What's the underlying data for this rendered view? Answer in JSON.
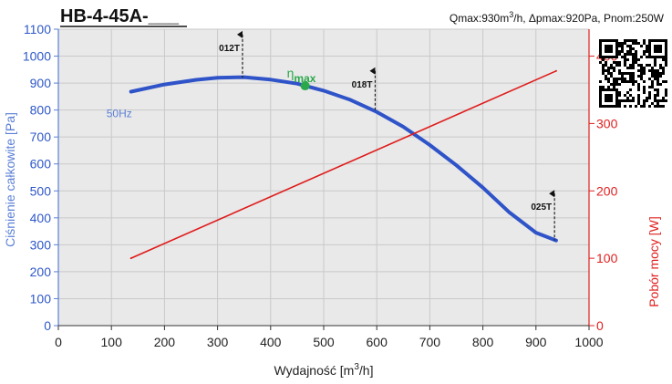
{
  "title": "HB-4-45A-___",
  "spec_parts": [
    "Qmax:930m",
    "3",
    "/h, Δpmax:920Pa, Pnom:250W"
  ],
  "colors": {
    "pressure_curve": "#2f53c8",
    "power_curve": "#e01b1b",
    "eta_point": "#2aa84a",
    "grid": "#c9c9c9",
    "plot_bg": "#e9e9e9",
    "left_axis": "#5b7fd6",
    "right_axis": "#e02020"
  },
  "qr_code_icon": "qr-code-icon",
  "chart_data": {
    "type": "line",
    "x_axis": {
      "label_parts": [
        "Wydajność [m",
        "3",
        "/h]"
      ],
      "range": [
        0,
        1000
      ],
      "ticks": [
        0,
        100,
        200,
        300,
        400,
        500,
        600,
        700,
        800,
        900,
        1000
      ]
    },
    "y_axis_left": {
      "label": "Ciśnienie całkowite [Pa]",
      "range": [
        0,
        1100
      ],
      "ticks": [
        0,
        100,
        200,
        300,
        400,
        500,
        600,
        700,
        800,
        900,
        1000,
        1100
      ]
    },
    "y_axis_right": {
      "label": "Pobór mocy [W]",
      "range": [
        0,
        440
      ],
      "ticks": [
        0,
        100,
        200,
        300,
        400
      ]
    },
    "grid": true,
    "series": [
      {
        "name": "50Hz",
        "axis": "left",
        "x": [
          137,
          200,
          260,
          300,
          350,
          400,
          450,
          500,
          550,
          600,
          650,
          700,
          750,
          800,
          850,
          900,
          938
        ],
        "y": [
          868,
          895,
          912,
          920,
          922,
          913,
          898,
          872,
          838,
          793,
          738,
          670,
          595,
          512,
          420,
          345,
          316
        ]
      },
      {
        "axis": "right",
        "x": [
          137,
          938
        ],
        "y": [
          100,
          378
        ]
      }
    ],
    "eta_max": {
      "label": "η",
      "sub": "max",
      "x": 465,
      "y": 890
    },
    "markers": [
      {
        "label": "012T",
        "x": 347,
        "y_top": 1080,
        "y_bottom": 920
      },
      {
        "label": "018T",
        "x": 597,
        "y_top": 945,
        "y_bottom": 793
      },
      {
        "label": "025T",
        "x": 935,
        "y_top": 490,
        "y_bottom": 316
      }
    ]
  }
}
